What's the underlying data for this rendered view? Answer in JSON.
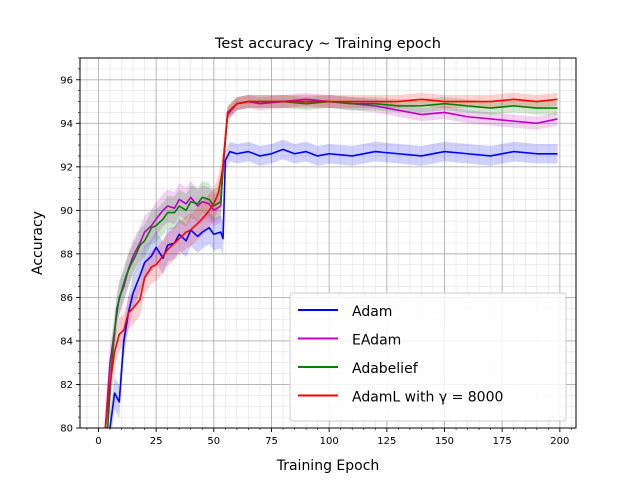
{
  "chart_data": {
    "type": "line",
    "title": "Test accuracy ~ Training epoch",
    "xlabel": "Training Epoch",
    "ylabel": "Accuracy",
    "xlim": [
      -8,
      207
    ],
    "ylim": [
      80,
      97
    ],
    "xticks": [
      0,
      25,
      50,
      75,
      100,
      125,
      150,
      175,
      200
    ],
    "yticks": [
      80,
      82,
      84,
      86,
      88,
      90,
      92,
      94,
      96
    ],
    "grid": true,
    "legend_position": "lower-right",
    "series": [
      {
        "name": "Adam",
        "color": "#0000ff",
        "x": [
          5,
          7,
          9,
          11,
          13,
          15,
          18,
          20,
          23,
          25,
          28,
          30,
          33,
          35,
          38,
          40,
          43,
          45,
          48,
          50,
          53,
          54,
          55,
          57,
          60,
          65,
          70,
          75,
          80,
          85,
          90,
          95,
          100,
          110,
          120,
          130,
          140,
          150,
          160,
          170,
          180,
          190,
          199
        ],
        "y": [
          80.0,
          81.6,
          81.2,
          84.0,
          85.3,
          86.2,
          87.0,
          87.6,
          87.9,
          88.3,
          87.8,
          88.4,
          88.5,
          88.9,
          88.6,
          89.1,
          88.8,
          89.0,
          89.2,
          88.9,
          89.0,
          88.7,
          92.3,
          92.7,
          92.6,
          92.7,
          92.5,
          92.6,
          92.8,
          92.6,
          92.7,
          92.5,
          92.6,
          92.5,
          92.7,
          92.6,
          92.5,
          92.7,
          92.6,
          92.5,
          92.7,
          92.6,
          92.6
        ]
      },
      {
        "name": "EAdam",
        "color": "#bf00bf",
        "x": [
          3,
          5,
          7,
          9,
          11,
          13,
          15,
          18,
          20,
          23,
          25,
          28,
          30,
          33,
          35,
          38,
          40,
          43,
          45,
          48,
          50,
          53,
          54,
          56,
          60,
          65,
          70,
          80,
          90,
          100,
          110,
          120,
          130,
          140,
          150,
          160,
          170,
          180,
          190,
          199
        ],
        "y": [
          80.0,
          83.0,
          84.5,
          86.0,
          86.5,
          87.3,
          87.9,
          88.5,
          89.0,
          89.3,
          89.6,
          90.0,
          90.2,
          90.1,
          90.5,
          90.3,
          90.6,
          90.2,
          90.4,
          90.3,
          90.0,
          90.2,
          92.0,
          94.4,
          94.9,
          95.0,
          94.9,
          95.0,
          95.1,
          95.0,
          94.9,
          94.8,
          94.6,
          94.4,
          94.5,
          94.3,
          94.2,
          94.1,
          94.0,
          94.2
        ]
      },
      {
        "name": "Adabelief",
        "color": "#008000",
        "x": [
          4,
          6,
          8,
          10,
          12,
          14,
          16,
          18,
          20,
          23,
          25,
          28,
          30,
          33,
          35,
          38,
          40,
          43,
          45,
          48,
          50,
          53,
          54,
          56,
          60,
          65,
          70,
          80,
          90,
          100,
          110,
          120,
          130,
          140,
          150,
          160,
          170,
          180,
          190,
          199
        ],
        "y": [
          80.0,
          83.3,
          85.5,
          86.3,
          87.0,
          87.5,
          87.9,
          88.4,
          88.6,
          89.2,
          89.3,
          89.6,
          89.9,
          89.9,
          90.2,
          90.0,
          90.4,
          90.3,
          90.6,
          90.5,
          90.2,
          90.4,
          92.0,
          94.5,
          94.9,
          95.0,
          95.0,
          95.0,
          94.9,
          95.0,
          94.9,
          94.9,
          94.8,
          94.8,
          94.9,
          94.8,
          94.7,
          94.8,
          94.7,
          94.7
        ]
      },
      {
        "name": "AdamL with γ = 8000",
        "color": "#ff0000",
        "x": [
          3,
          5,
          7,
          9,
          11,
          13,
          15,
          18,
          20,
          23,
          25,
          28,
          30,
          33,
          35,
          38,
          40,
          43,
          45,
          48,
          50,
          52,
          54,
          56,
          60,
          65,
          70,
          80,
          90,
          100,
          110,
          120,
          130,
          140,
          150,
          160,
          170,
          180,
          190,
          199
        ],
        "y": [
          80.0,
          82.0,
          83.5,
          84.3,
          84.5,
          85.3,
          85.5,
          85.9,
          86.9,
          87.4,
          87.5,
          87.9,
          88.2,
          88.5,
          88.7,
          89.0,
          89.1,
          89.4,
          89.6,
          90.0,
          90.3,
          90.8,
          92.0,
          94.5,
          94.9,
          95.0,
          95.0,
          95.0,
          95.0,
          95.0,
          95.0,
          95.0,
          95.0,
          95.1,
          95.0,
          95.0,
          95.0,
          95.1,
          95.0,
          95.1
        ]
      }
    ]
  }
}
